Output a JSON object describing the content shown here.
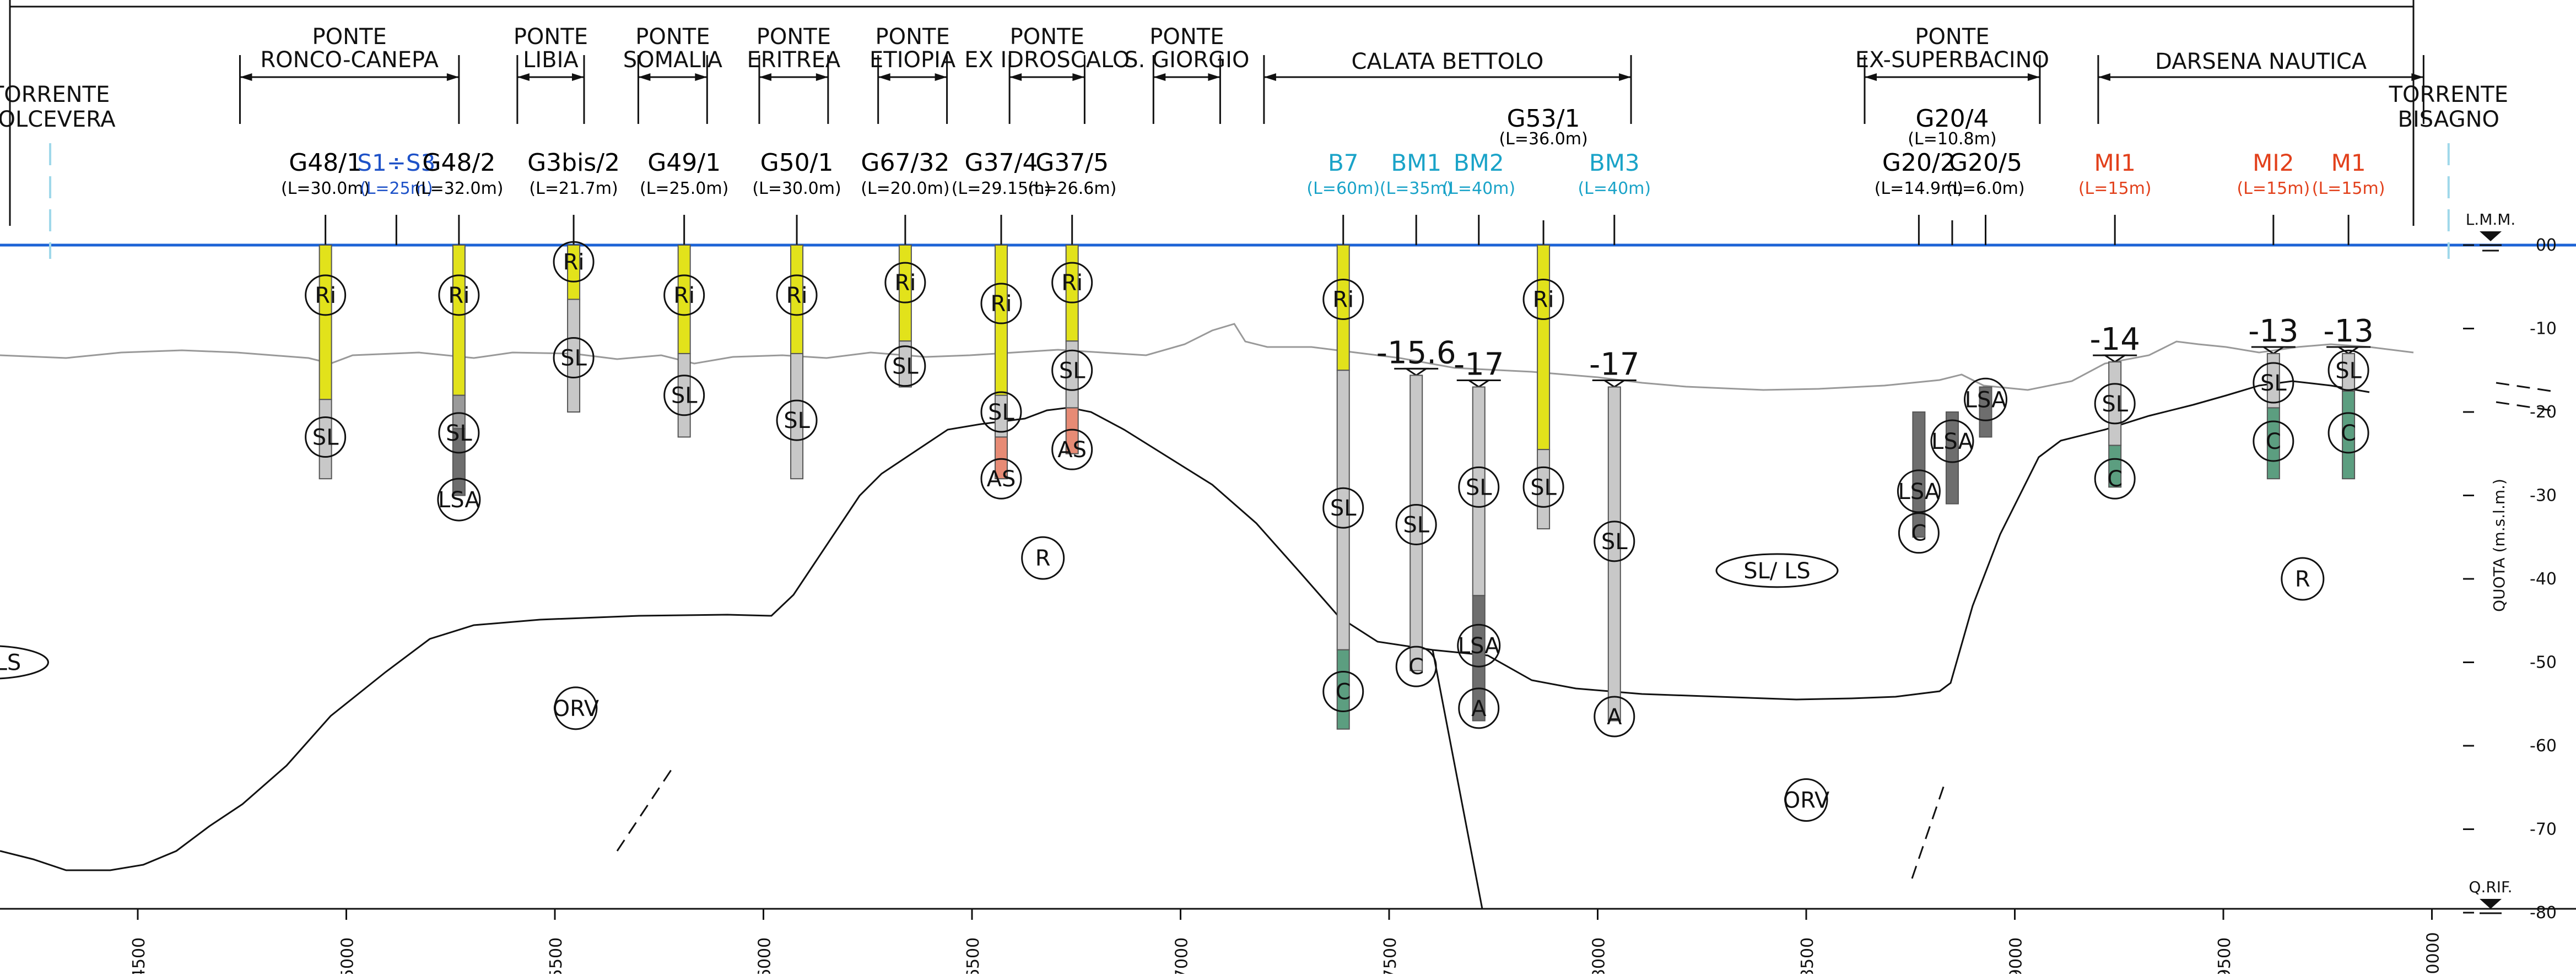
{
  "piers": [
    {
      "name": "TORRENTE\nPOLCEVERA",
      "lines": [
        "TORRENTE",
        "POLCEVERA"
      ],
      "from": 4290,
      "to": 4290,
      "kind": "river"
    },
    {
      "name": "PONTE RONCO-CANEPA",
      "lines": [
        "PONTE",
        "RONCO-CANEPA"
      ],
      "from": 4745,
      "to": 5270,
      "kind": "span"
    },
    {
      "name": "PONTE LIBIA",
      "lines": [
        "PONTE",
        "LIBIA"
      ],
      "from": 5410,
      "to": 5570,
      "kind": "span"
    },
    {
      "name": "PONTE SOMALIA",
      "lines": [
        "PONTE",
        "SOMALIA"
      ],
      "from": 5700,
      "to": 5865,
      "kind": "span"
    },
    {
      "name": "PONTE ERITREA",
      "lines": [
        "PONTE",
        "ERITREA"
      ],
      "from": 5990,
      "to": 6155,
      "kind": "span"
    },
    {
      "name": "PONTE ETIOPIA",
      "lines": [
        "PONTE",
        "ETIOPIA"
      ],
      "from": 6275,
      "to": 6440,
      "kind": "span"
    },
    {
      "name": "PONTE EX IDROSCALO",
      "lines": [
        "PONTE",
        "EX IDROSCALO"
      ],
      "from": 6590,
      "to": 6770,
      "kind": "span"
    },
    {
      "name": "PONTE S. GIORGIO",
      "lines": [
        "PONTE",
        "S. GIORGIO"
      ],
      "from": 6935,
      "to": 7095,
      "kind": "span"
    },
    {
      "name": "CALATA BETTOLO",
      "lines": [
        "CALATA BETTOLO"
      ],
      "from": 7200,
      "to": 8080,
      "kind": "wide"
    },
    {
      "name": "PONTE EX-SUPERBACINO",
      "lines": [
        "PONTE",
        "EX-SUPERBACINO"
      ],
      "from": 8640,
      "to": 9060,
      "kind": "span"
    },
    {
      "name": "DARSENA NAUTICA",
      "lines": [
        "DARSENA NAUTICA"
      ],
      "from": 9200,
      "to": 9980,
      "kind": "wide"
    },
    {
      "name": "TORRENTE BISAGNO",
      "lines": [
        "TORRENTE",
        "BISAGNO"
      ],
      "from": 10040,
      "to": 10040,
      "kind": "river"
    }
  ],
  "boreholes": [
    {
      "name": "G48/1",
      "length": "(L=30.0m)",
      "x": 4950,
      "top": 0,
      "bottom": -28,
      "color": "#000000",
      "segments": [
        [
          0,
          -18.5,
          "#e2e21b"
        ],
        [
          -18.5,
          -28,
          "#c8c8c8"
        ]
      ],
      "labels": [
        [
          "Ri",
          -6
        ],
        [
          "SL",
          -23
        ]
      ],
      "gl": null
    },
    {
      "name": "S1÷S3",
      "length": "(L=25m)",
      "x": 5120,
      "top": null,
      "bottom": null,
      "color": "#1e52c8",
      "segments": [],
      "labels": [],
      "gl": null,
      "tick": -4
    },
    {
      "name": "G48/2",
      "length": "(L=32.0m)",
      "x": 5270,
      "top": 0,
      "bottom": -30,
      "color": "#000000",
      "segments": [
        [
          0,
          -18,
          "#e2e21b"
        ],
        [
          -18,
          -22,
          "#9a9a9a"
        ],
        [
          -22,
          -30,
          "#6e6e6e"
        ]
      ],
      "labels": [
        [
          "Ri",
          -6
        ],
        [
          "SL",
          -22.5
        ],
        [
          "LSA",
          -30.5
        ]
      ],
      "gl": null
    },
    {
      "name": "G3bis/2",
      "length": "(L=21.7m)",
      "x": 5545,
      "top": 0,
      "bottom": -20,
      "color": "#000000",
      "segments": [
        [
          0,
          -6.5,
          "#e2e21b"
        ],
        [
          -6.5,
          -20,
          "#c8c8c8"
        ]
      ],
      "labels": [
        [
          "Ri",
          -2
        ],
        [
          "SL",
          -13.5
        ]
      ],
      "gl": null
    },
    {
      "name": "G49/1",
      "length": "(L=25.0m)",
      "x": 5810,
      "top": 0,
      "bottom": -23,
      "color": "#000000",
      "segments": [
        [
          0,
          -13,
          "#e2e21b"
        ],
        [
          -13,
          -23,
          "#c8c8c8"
        ]
      ],
      "labels": [
        [
          "Ri",
          -6
        ],
        [
          "SL",
          -18
        ]
      ],
      "gl": null
    },
    {
      "name": "G50/1",
      "length": "(L=30.0m)",
      "x": 6080,
      "top": 0,
      "bottom": -28,
      "color": "#000000",
      "segments": [
        [
          0,
          -13,
          "#e2e21b"
        ],
        [
          -13,
          -28,
          "#c8c8c8"
        ]
      ],
      "labels": [
        [
          "Ri",
          -6
        ],
        [
          "SL",
          -21
        ]
      ],
      "gl": null
    },
    {
      "name": "G67/32",
      "length": "(L=20.0m)",
      "x": 6340,
      "top": 0,
      "bottom": -17,
      "color": "#000000",
      "segments": [
        [
          0,
          -11.5,
          "#e2e21b"
        ],
        [
          -11.5,
          -17,
          "#c8c8c8"
        ]
      ],
      "labels": [
        [
          "Ri",
          -4.5
        ],
        [
          "SL",
          -14.5
        ]
      ],
      "gl": null
    },
    {
      "name": "G37/4",
      "length": "(L=29.15m)",
      "x": 6570,
      "top": 0,
      "bottom": -28,
      "color": "#000000",
      "segments": [
        [
          0,
          -18,
          "#e2e21b"
        ],
        [
          -18,
          -23,
          "#c8c8c8"
        ],
        [
          -23,
          -28,
          "#e78b75"
        ]
      ],
      "labels": [
        [
          "Ri",
          -7
        ],
        [
          "SL",
          -20
        ],
        [
          "AS",
          -28
        ]
      ],
      "gl": null
    },
    {
      "name": "G37/5",
      "length": "(L=26.6m)",
      "x": 6740,
      "top": 0,
      "bottom": -25,
      "color": "#000000",
      "segments": [
        [
          0,
          -11.5,
          "#e2e21b"
        ],
        [
          -11.5,
          -19.5,
          "#c8c8c8"
        ],
        [
          -19.5,
          -25,
          "#e78b75"
        ]
      ],
      "labels": [
        [
          "Ri",
          -4.5
        ],
        [
          "SL",
          -15
        ],
        [
          "AS",
          -24.5
        ]
      ],
      "gl": null
    },
    {
      "name": "B7",
      "length": "(L=60m)",
      "x": 7390,
      "top": 0,
      "bottom": -58,
      "color": "#1aa3c8",
      "segments": [
        [
          0,
          -15,
          "#e2e21b"
        ],
        [
          -15,
          -48.5,
          "#c8c8c8"
        ],
        [
          -48.5,
          -58,
          "#5c9e80"
        ]
      ],
      "labels": [
        [
          "Ri",
          -6.5
        ],
        [
          "SL",
          -31.5
        ],
        [
          "C",
          -53.5
        ]
      ],
      "gl": null
    },
    {
      "name": "BM1",
      "length": "(L=35m)",
      "x": 7565,
      "top": -15.6,
      "bottom": -51,
      "color": "#1aa3c8",
      "segments": [
        [
          -15.6,
          -51,
          "#c8c8c8"
        ]
      ],
      "labels": [
        [
          "SL",
          -33.5
        ],
        [
          "C",
          -50.5
        ]
      ],
      "gl": "-15.6",
      "tick": -1.5
    },
    {
      "name": "BM2",
      "length": "(L=40m)",
      "x": 7715,
      "top": -17,
      "bottom": -57,
      "color": "#1aa3c8",
      "segments": [
        [
          -17,
          -42,
          "#c8c8c8"
        ],
        [
          -42,
          -57,
          "#6e6e6e"
        ]
      ],
      "labels": [
        [
          "SL",
          -29
        ],
        [
          "LSA",
          -48
        ],
        [
          "A",
          -55.5
        ]
      ],
      "gl": "-17",
      "tick": -1.5
    },
    {
      "name": "G53/1",
      "length": "(L=36.0m)",
      "x": 7870,
      "top": 0,
      "bottom": -34,
      "color": "#000000",
      "segments": [
        [
          0,
          -24.5,
          "#e2e21b"
        ],
        [
          -24.5,
          -34,
          "#c8c8c8"
        ]
      ],
      "labels": [
        [
          "Ri",
          -6.5
        ],
        [
          "SL",
          -29
        ]
      ],
      "gl": null,
      "high": true
    },
    {
      "name": "BM3",
      "length": "(L=40m)",
      "x": 8040,
      "top": -17,
      "bottom": -57,
      "color": "#1aa3c8",
      "segments": [
        [
          -17,
          -57,
          "#c8c8c8"
        ]
      ],
      "labels": [
        [
          "SL",
          -35.5
        ],
        [
          "A",
          -56.5
        ]
      ],
      "gl": "-17",
      "tick": -1.5
    },
    {
      "name": "G20/2",
      "length": "(L=14.9m)",
      "x": 8770,
      "top": -20,
      "bottom": -35,
      "color": "#000000",
      "segments": [
        [
          -20,
          -35,
          "#6e6e6e"
        ]
      ],
      "labels": [
        [
          "LSA",
          -29.5
        ],
        [
          "C",
          -34.5
        ]
      ],
      "gl": null,
      "tick": -1.5
    },
    {
      "name": "G20/4",
      "length": "(L=10.8m)",
      "x": 8850,
      "top": -20,
      "bottom": -31,
      "color": "#000000",
      "segments": [
        [
          -20,
          -31,
          "#6e6e6e"
        ]
      ],
      "labels": [
        [
          "LSA",
          -23.5
        ]
      ],
      "gl": null,
      "high": true,
      "tick": -1.5
    },
    {
      "name": "G20/5",
      "length": "(L=6.0m)",
      "x": 8930,
      "top": -17,
      "bottom": -23,
      "color": "#000000",
      "segments": [
        [
          -17,
          -23,
          "#6e6e6e"
        ]
      ],
      "labels": [
        [
          "LSA",
          -18.5
        ]
      ],
      "gl": null,
      "tick": -1.5
    },
    {
      "name": "MI1",
      "length": "(L=15m)",
      "x": 9240,
      "top": -14,
      "bottom": -29,
      "color": "#e2401b",
      "segments": [
        [
          -14,
          -24,
          "#c8c8c8"
        ],
        [
          -24,
          -29,
          "#5c9e80"
        ]
      ],
      "labels": [
        [
          "SL",
          -19
        ],
        [
          "C",
          -28
        ]
      ],
      "gl": "-14",
      "tick": -1.5
    },
    {
      "name": "MI2",
      "length": "(L=15m)",
      "x": 9620,
      "top": -13,
      "bottom": -28,
      "color": "#e2401b",
      "segments": [
        [
          -13,
          -19.5,
          "#c8c8c8"
        ],
        [
          -19.5,
          -28,
          "#5c9e80"
        ]
      ],
      "labels": [
        [
          "SL",
          -16.5
        ],
        [
          "C",
          -23.5
        ]
      ],
      "gl": "-13",
      "tick": -1.5
    },
    {
      "name": "M1",
      "length": "(L=15m)",
      "x": 9800,
      "top": -13,
      "bottom": -28,
      "color": "#e2401b",
      "segments": [
        [
          -13,
          -17.5,
          "#c8c8c8"
        ],
        [
          -17.5,
          -28,
          "#5c9e80"
        ]
      ],
      "labels": [
        [
          "SL",
          -15
        ],
        [
          "C",
          -22.5
        ]
      ],
      "gl": "-13",
      "tick": -1.5
    }
  ],
  "zone_labels": [
    {
      "text": "SL/ LS",
      "x": 4140,
      "z": -50,
      "shape": "ellipse"
    },
    {
      "text": "ORV",
      "x": 5550,
      "z": -55.5,
      "shape": "circle"
    },
    {
      "text": "R",
      "x": 6670,
      "z": -37.5,
      "shape": "circle"
    },
    {
      "text": "SL/ LS",
      "x": 8430,
      "z": -39,
      "shape": "ellipse"
    },
    {
      "text": "ORV",
      "x": 8500,
      "z": -66.5,
      "shape": "circle"
    },
    {
      "text": "R",
      "x": 9690,
      "z": -40,
      "shape": "circle"
    }
  ],
  "axis": {
    "x_ticks": [
      4500,
      5000,
      5500,
      6000,
      6500,
      7000,
      7500,
      8000,
      8500,
      9000,
      9500,
      10000
    ],
    "z_ticks": [
      0,
      -10,
      -20,
      -30,
      -40,
      -50,
      -60,
      -70,
      -80
    ],
    "z_tick_labels": [
      "00",
      "-10",
      "-20",
      "-30",
      "-40",
      "-50",
      "-60",
      "-70",
      "-80"
    ],
    "z_label": "QUOTA (m.s.l.m.)",
    "lmm_label": "L.M.M.",
    "qrif_label": "Q.RIF."
  },
  "colors": {
    "water_line": "#1c63d6",
    "yellow": "#e2e21b",
    "grey": "#c8c8c8",
    "dark_grey": "#6e6e6e",
    "green": "#5c9e80",
    "salmon": "#e78b75",
    "cyan_text": "#1aa3c8",
    "red_text": "#e2401b",
    "blue_text": "#1e52c8"
  }
}
